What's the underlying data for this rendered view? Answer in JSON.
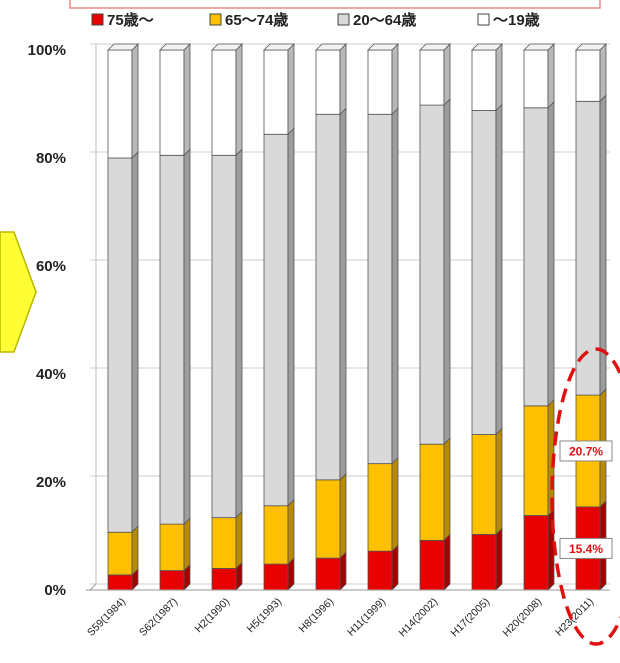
{
  "chart_data": {
    "type": "bar",
    "stacked": true,
    "stacked_percent": true,
    "categories": [
      "S59(1984)",
      "S62(1987)",
      "H2(1990)",
      "H5(1993)",
      "H8(1996)",
      "H11(1999)",
      "H14(2002)",
      "H17(2005)",
      "H20(2008)",
      "H23(2011)"
    ],
    "series": [
      {
        "name": "75歳〜",
        "color": "#e60000",
        "values": [
          2.8,
          3.6,
          4.0,
          4.8,
          5.9,
          7.2,
          9.2,
          10.3,
          13.8,
          15.4
        ]
      },
      {
        "name": "65〜74歳",
        "color": "#ffc000",
        "values": [
          7.9,
          8.6,
          9.4,
          10.8,
          14.5,
          16.2,
          17.8,
          18.5,
          20.3,
          20.7
        ]
      },
      {
        "name": "20〜64歳",
        "color": "#d9d9d9",
        "values": [
          69.3,
          68.3,
          67.1,
          68.8,
          67.7,
          64.7,
          62.8,
          60.0,
          55.2,
          54.4
        ]
      },
      {
        "name": "〜19歳",
        "color": "#ffffff",
        "values": [
          20.0,
          19.5,
          19.5,
          15.6,
          11.9,
          11.9,
          10.2,
          11.2,
          10.7,
          9.5
        ]
      }
    ],
    "ylim": [
      0,
      100
    ],
    "yticks": [
      "0%",
      "20%",
      "40%",
      "60%",
      "80%",
      "100%"
    ],
    "grid": true,
    "legend_position": "top",
    "annotations": [
      {
        "text": "20.7%",
        "category": "H23(2011)",
        "series": "65〜74歳"
      },
      {
        "text": "15.4%",
        "category": "H23(2011)",
        "series": "75歳〜"
      }
    ]
  }
}
